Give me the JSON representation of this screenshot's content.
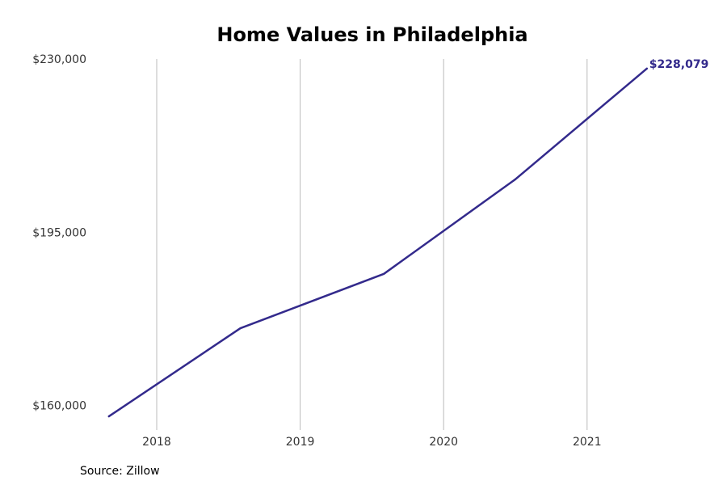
{
  "chart_data": {
    "type": "line",
    "title": "Home Values in Philadelphia",
    "xlabel": "",
    "ylabel": "",
    "x_tick_labels": [
      "2018",
      "2019",
      "2020",
      "2021"
    ],
    "y_tick_labels": [
      "$160,000",
      "$195,000",
      "$230,000"
    ],
    "y_ticks": [
      160000,
      195000,
      230000
    ],
    "xlim": [
      "2017-08",
      "2021-10"
    ],
    "ylim": [
      157000,
      230000
    ],
    "grid": "vertical",
    "legend": "none",
    "series": [
      {
        "x": [
          "2017-09",
          "2018-08",
          "2019-08",
          "2020-07",
          "2021-06"
        ],
        "values": [
          157800,
          175600,
          186600,
          205700,
          228079
        ],
        "end_label": "$228,079",
        "color": "#332a8c"
      }
    ],
    "source": "Source: Zillow"
  }
}
